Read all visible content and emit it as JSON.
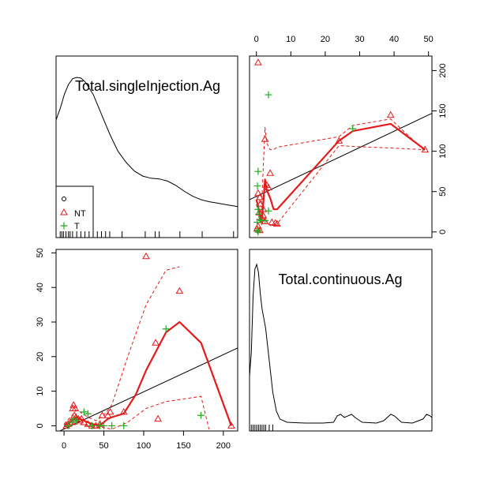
{
  "chart_data": [
    {
      "type": "density",
      "panel": "top-left",
      "title": "Total.singleInjection.Ag",
      "x_range": [
        -5,
        215
      ],
      "density": [
        [
          -5,
          0.7
        ],
        [
          0,
          0.78
        ],
        [
          5,
          0.88
        ],
        [
          10,
          0.95
        ],
        [
          15,
          0.99
        ],
        [
          20,
          1.0
        ],
        [
          25,
          0.995
        ],
        [
          30,
          0.97
        ],
        [
          40,
          0.88
        ],
        [
          50,
          0.74
        ],
        [
          60,
          0.6
        ],
        [
          70,
          0.48
        ],
        [
          80,
          0.4
        ],
        [
          90,
          0.34
        ],
        [
          100,
          0.305
        ],
        [
          110,
          0.29
        ],
        [
          120,
          0.285
        ],
        [
          130,
          0.27
        ],
        [
          140,
          0.24
        ],
        [
          150,
          0.2
        ],
        [
          160,
          0.165
        ],
        [
          170,
          0.14
        ],
        [
          180,
          0.125
        ],
        [
          190,
          0.115
        ],
        [
          200,
          0.105
        ],
        [
          210,
          0.095
        ],
        [
          215,
          0.09
        ]
      ],
      "rug": [
        0,
        2,
        4,
        7,
        10,
        12,
        15,
        20,
        25,
        30,
        35,
        40,
        45,
        50,
        55,
        60,
        75,
        103,
        115,
        120,
        145,
        172,
        210
      ],
      "legend": {
        "position": "bottom-left",
        "entries": [
          {
            "symbol": "circle",
            "label": "",
            "color": "#000000"
          },
          {
            "symbol": "triangle",
            "label": "NT",
            "color": "#e41a1c"
          },
          {
            "symbol": "plus",
            "label": "T",
            "color": "#22aa22"
          }
        ]
      }
    },
    {
      "type": "scatter",
      "panel": "top-right",
      "x_ticks": [
        0,
        10,
        20,
        30,
        40,
        50
      ],
      "y_ticks": [
        0,
        50,
        100,
        150,
        200
      ],
      "xlim": [
        -2,
        51
      ],
      "ylim": [
        -7,
        218
      ],
      "points_NT": [
        [
          0.5,
          210
        ],
        [
          2.5,
          115
        ],
        [
          4,
          73
        ],
        [
          0.5,
          48
        ],
        [
          1,
          43
        ],
        [
          3,
          58
        ],
        [
          3.5,
          55
        ],
        [
          2,
          28
        ],
        [
          1.5,
          18
        ],
        [
          0.5,
          7
        ],
        [
          0.2,
          4
        ],
        [
          1,
          2
        ],
        [
          2.5,
          13
        ],
        [
          4.5,
          12
        ],
        [
          5.5,
          11
        ],
        [
          6,
          10
        ],
        [
          24,
          113
        ],
        [
          39,
          145
        ],
        [
          49,
          102
        ],
        [
          0.8,
          24
        ],
        [
          1.2,
          35
        ],
        [
          2,
          20
        ]
      ],
      "points_T": [
        [
          3.5,
          170
        ],
        [
          0.5,
          75
        ],
        [
          0.3,
          57
        ],
        [
          0.5,
          28
        ],
        [
          0.7,
          22
        ],
        [
          0.2,
          12
        ],
        [
          0.3,
          2
        ],
        [
          0.5,
          0
        ],
        [
          3.5,
          26
        ],
        [
          1,
          15
        ],
        [
          1.5,
          14
        ],
        [
          2.5,
          14
        ],
        [
          28,
          128
        ]
      ],
      "regression_line": [
        [
          -2,
          40
        ],
        [
          51,
          147
        ]
      ],
      "smooth": [
        [
          0,
          40
        ],
        [
          0.5,
          32
        ],
        [
          1,
          20
        ],
        [
          1.5,
          12
        ],
        [
          2,
          35
        ],
        [
          2.5,
          65
        ],
        [
          3,
          52
        ],
        [
          4,
          42
        ],
        [
          5,
          28
        ],
        [
          6,
          28
        ],
        [
          24,
          113
        ],
        [
          28,
          125
        ],
        [
          39,
          134
        ],
        [
          49,
          102
        ]
      ],
      "smooth_upper": [
        [
          0,
          45
        ],
        [
          1,
          38
        ],
        [
          1.5,
          30
        ],
        [
          2,
          80
        ],
        [
          2.5,
          130
        ],
        [
          3,
          110
        ],
        [
          4,
          102
        ],
        [
          5,
          102
        ],
        [
          6,
          105
        ],
        [
          24,
          118
        ],
        [
          28,
          132
        ],
        [
          39,
          140
        ],
        [
          49,
          100
        ]
      ],
      "smooth_lower": [
        [
          0,
          34
        ],
        [
          1,
          20
        ],
        [
          1.5,
          8
        ],
        [
          2,
          14
        ],
        [
          2.5,
          18
        ],
        [
          3,
          12
        ],
        [
          4,
          8
        ],
        [
          5,
          8
        ],
        [
          6,
          10
        ],
        [
          24,
          107
        ],
        [
          28,
          106
        ],
        [
          39,
          104
        ],
        [
          49,
          102
        ]
      ]
    },
    {
      "type": "scatter",
      "panel": "bottom-left",
      "x_ticks": [
        0,
        50,
        100,
        150,
        200
      ],
      "y_ticks": [
        0,
        10,
        20,
        30,
        40,
        50
      ],
      "xlim": [
        -10,
        218
      ],
      "ylim": [
        -1.5,
        51
      ],
      "points_NT": [
        [
          3,
          0
        ],
        [
          5,
          0.5
        ],
        [
          8,
          1
        ],
        [
          10,
          1
        ],
        [
          11,
          5
        ],
        [
          12,
          6
        ],
        [
          14,
          5
        ],
        [
          13,
          3
        ],
        [
          15,
          2.5
        ],
        [
          18,
          2
        ],
        [
          20,
          1.5
        ],
        [
          22,
          2
        ],
        [
          25,
          1
        ],
        [
          30,
          0.5
        ],
        [
          35,
          0
        ],
        [
          40,
          0
        ],
        [
          45,
          0.5
        ],
        [
          48,
          3
        ],
        [
          55,
          3
        ],
        [
          58,
          4
        ],
        [
          75,
          4
        ],
        [
          103,
          49
        ],
        [
          115,
          24
        ],
        [
          118,
          2
        ],
        [
          145,
          39
        ],
        [
          210,
          0
        ]
      ],
      "points_T": [
        [
          5,
          0
        ],
        [
          10,
          1
        ],
        [
          12,
          2
        ],
        [
          15,
          1.5
        ],
        [
          25,
          4
        ],
        [
          30,
          3.5
        ],
        [
          35,
          0
        ],
        [
          45,
          0
        ],
        [
          50,
          0
        ],
        [
          60,
          0
        ],
        [
          75,
          0
        ],
        [
          128,
          28
        ],
        [
          172,
          3
        ]
      ],
      "regression_line": [
        [
          -10,
          -2
        ],
        [
          218,
          22.5
        ]
      ],
      "smooth": [
        [
          0,
          0.2
        ],
        [
          5,
          0.5
        ],
        [
          10,
          1.5
        ],
        [
          15,
          2.5
        ],
        [
          20,
          2
        ],
        [
          25,
          1.5
        ],
        [
          30,
          1
        ],
        [
          35,
          0.5
        ],
        [
          40,
          0.3
        ],
        [
          45,
          0.2
        ],
        [
          50,
          1
        ],
        [
          55,
          2
        ],
        [
          60,
          2.5
        ],
        [
          75,
          3.5
        ],
        [
          90,
          9
        ],
        [
          103,
          16
        ],
        [
          128,
          27
        ],
        [
          145,
          30
        ],
        [
          172,
          24
        ],
        [
          210,
          0
        ]
      ],
      "smooth_upper": [
        [
          0,
          0.5
        ],
        [
          10,
          3
        ],
        [
          15,
          4.5
        ],
        [
          20,
          4
        ],
        [
          30,
          2.5
        ],
        [
          40,
          1.5
        ],
        [
          50,
          3
        ],
        [
          60,
          6
        ],
        [
          80,
          20
        ],
        [
          103,
          35
        ],
        [
          128,
          45
        ],
        [
          145,
          46
        ]
      ],
      "smooth_lower": [
        [
          0,
          -0.3
        ],
        [
          10,
          0
        ],
        [
          15,
          0.5
        ],
        [
          20,
          0.5
        ],
        [
          30,
          0
        ],
        [
          40,
          -0.5
        ],
        [
          50,
          -0.5
        ],
        [
          60,
          -1
        ],
        [
          80,
          1
        ],
        [
          103,
          5
        ],
        [
          128,
          7
        ],
        [
          172,
          8.5
        ],
        [
          182,
          -1
        ]
      ]
    },
    {
      "type": "density",
      "panel": "bottom-right",
      "title": "Total.continuous.Ag",
      "x_range": [
        -0.5,
        50.5
      ],
      "density": [
        [
          -0.5,
          0.3
        ],
        [
          0,
          0.45
        ],
        [
          0.5,
          0.8
        ],
        [
          1,
          0.97
        ],
        [
          1.5,
          1.0
        ],
        [
          2,
          0.95
        ],
        [
          2.5,
          0.82
        ],
        [
          3,
          0.72
        ],
        [
          4,
          0.6
        ],
        [
          5,
          0.4
        ],
        [
          6,
          0.2
        ],
        [
          7,
          0.08
        ],
        [
          8,
          0.03
        ],
        [
          10,
          0.01
        ],
        [
          15,
          0.005
        ],
        [
          20,
          0.005
        ],
        [
          23,
          0.01
        ],
        [
          24,
          0.05
        ],
        [
          25,
          0.06
        ],
        [
          26,
          0.04
        ],
        [
          27,
          0.05
        ],
        [
          28,
          0.06
        ],
        [
          29,
          0.04
        ],
        [
          31,
          0.01
        ],
        [
          35,
          0.005
        ],
        [
          37,
          0.02
        ],
        [
          39,
          0.06
        ],
        [
          40,
          0.05
        ],
        [
          42,
          0.01
        ],
        [
          45,
          0.005
        ],
        [
          48,
          0.03
        ],
        [
          49,
          0.06
        ],
        [
          50,
          0.05
        ],
        [
          50.5,
          0.04
        ]
      ],
      "rug": [
        0,
        0.5,
        1,
        1.5,
        2,
        2.5,
        3,
        3.5,
        4,
        5,
        6
      ]
    }
  ]
}
